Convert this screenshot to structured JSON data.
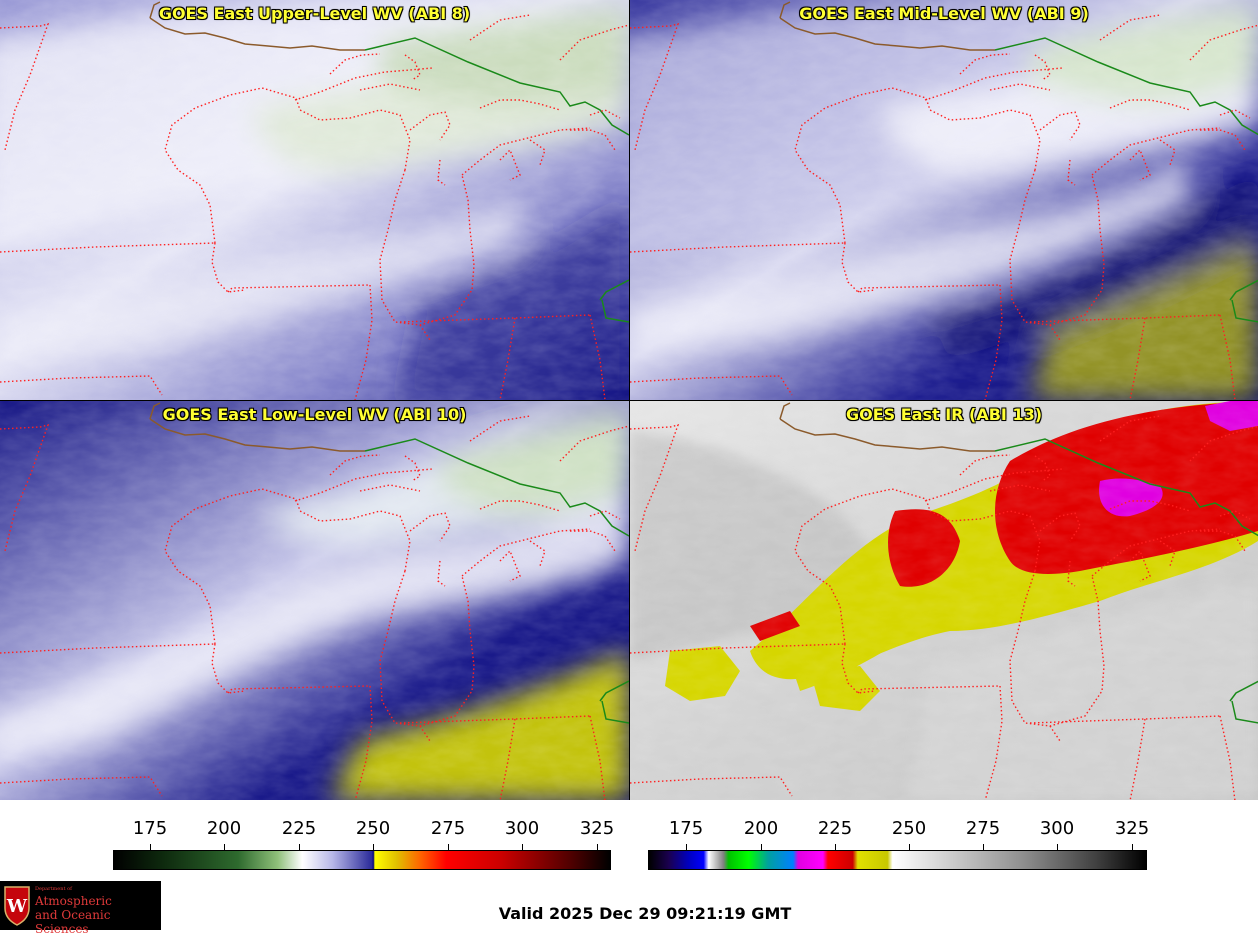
{
  "panels": [
    {
      "title": "GOES East Upper-Level WV (ABI 8)"
    },
    {
      "title": "GOES East Mid-Level WV (ABI 9)"
    },
    {
      "title": "GOES East Low-Level WV (ABI 10)"
    },
    {
      "title": "GOES East IR (ABI 13)"
    }
  ],
  "colorbars": [
    {
      "ticks": [
        "175",
        "200",
        "225",
        "250",
        "275",
        "300",
        "325"
      ]
    },
    {
      "ticks": [
        "175",
        "200",
        "225",
        "250",
        "275",
        "300",
        "325"
      ]
    }
  ],
  "footer": {
    "valid_text": "Valid 2025 Dec 29 09:21:19 GMT",
    "logo_small": "Department of",
    "logo_line1": "Atmospheric",
    "logo_line2": "and Oceanic Sciences"
  },
  "colors": {
    "title_text": "#ffff33",
    "state_border": "#ff2020",
    "country_border": "#1a8a1a",
    "coast": "#8b5a2b"
  }
}
